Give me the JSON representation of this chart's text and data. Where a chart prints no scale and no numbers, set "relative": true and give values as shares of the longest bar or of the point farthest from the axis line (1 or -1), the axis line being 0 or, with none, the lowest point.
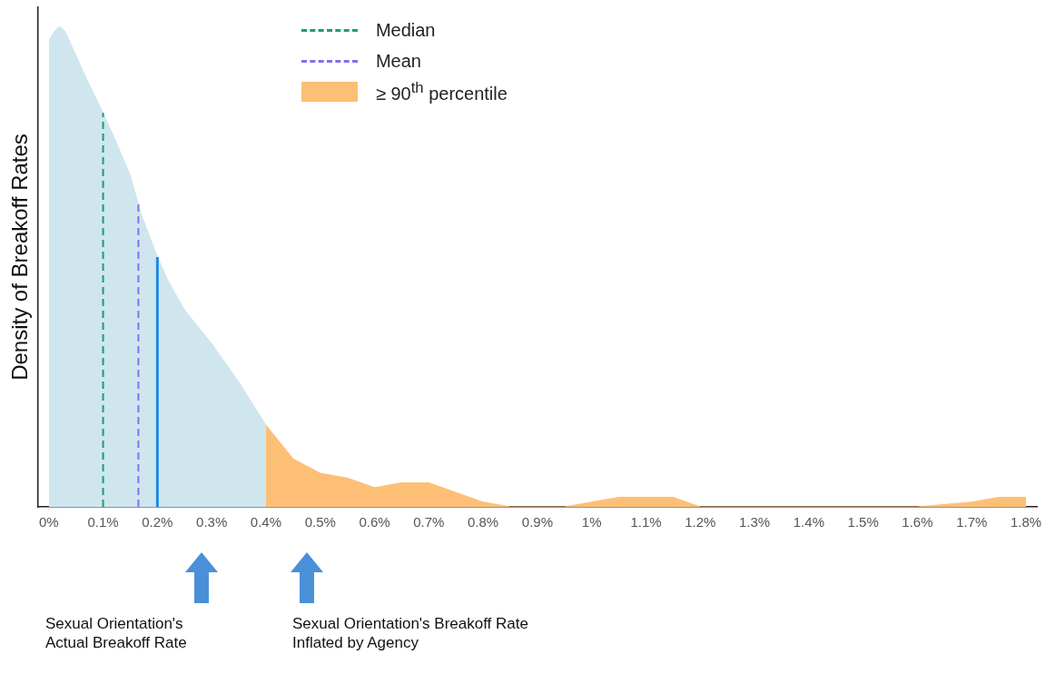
{
  "chart_data": {
    "type": "area",
    "relative": true,
    "ylabel": "Density of Breakoff Rates",
    "grid": false,
    "marker": "none",
    "legend": "top",
    "tick_labels": "x",
    "xlim": [
      -0.02,
      1.82
    ],
    "xticks": [
      {
        "value": 0,
        "label": "0%"
      },
      {
        "value": 0.1,
        "label": "0.1%"
      },
      {
        "value": 0.2,
        "label": "0.2%"
      },
      {
        "value": 0.3,
        "label": "0.3%"
      },
      {
        "value": 0.4,
        "label": "0.4%"
      },
      {
        "value": 0.5,
        "label": "0.5%"
      },
      {
        "value": 0.6,
        "label": "0.6%"
      },
      {
        "value": 0.7,
        "label": "0.7%"
      },
      {
        "value": 0.8,
        "label": "0.8%"
      },
      {
        "value": 0.9,
        "label": "0.9%"
      },
      {
        "value": 1,
        "label": "1%"
      },
      {
        "value": 1.1,
        "label": "1.1%"
      },
      {
        "value": 1.2,
        "label": "1.2%"
      },
      {
        "value": 1.3,
        "label": "1.3%"
      },
      {
        "value": 1.4,
        "label": "1.4%"
      },
      {
        "value": 1.5,
        "label": "1.5%"
      },
      {
        "value": 1.6,
        "label": "1.6%"
      },
      {
        "value": 1.7,
        "label": "1.7%"
      },
      {
        "value": 1.8,
        "label": "1.8%"
      }
    ],
    "series": [
      {
        "color": "#d0e6ee",
        "x": [
          0,
          0.01,
          0.02,
          0.03,
          0.05,
          0.07,
          0.1,
          0.12,
          0.15,
          0.17,
          0.2,
          0.22,
          0.25,
          0.3,
          0.35,
          0.4
        ],
        "values": [
          0.97,
          0.99,
          1,
          0.99,
          0.94,
          0.89,
          0.82,
          0.77,
          0.69,
          0.61,
          0.52,
          0.47,
          0.41,
          0.34,
          0.26,
          0.17
        ]
      },
      {
        "name": "≥ 90$^{th}$ percentile",
        "color": "#fdbf76",
        "x": [
          0.4,
          0.45,
          0.5,
          0.55,
          0.6,
          0.65,
          0.7,
          0.75,
          0.8,
          0.85,
          0.9,
          0.95,
          1,
          1.05,
          1.1,
          1.15,
          1.2,
          1.3,
          1.4,
          1.5,
          1.6,
          1.7,
          1.75,
          1.8
        ],
        "values": [
          0.17,
          0.1,
          0.07,
          0.06,
          0.04,
          0.05,
          0.05,
          0.03,
          0.01,
          0,
          0,
          0,
          0.01,
          0.02,
          0.02,
          0.02,
          0,
          0,
          0,
          0,
          0,
          0.01,
          0.02,
          0.02
        ]
      }
    ],
    "ref_lines": [
      {
        "axis": "x",
        "value": 0.1,
        "label": "Median",
        "color": "#1a9e6e",
        "line_style": "dashed"
      },
      {
        "axis": "x",
        "value": 0.165,
        "label": "Mean",
        "color": "#8b6cf0",
        "line_style": "dashed"
      },
      {
        "axis": "x",
        "value": 0.2,
        "color": "#1e88e5",
        "line_style": "solid"
      }
    ],
    "annotations": [
      "Sexual Orientation's Actual Breakoff Rate",
      "Sexual Orientation's Breakoff Rate Inflated by Agency"
    ]
  }
}
